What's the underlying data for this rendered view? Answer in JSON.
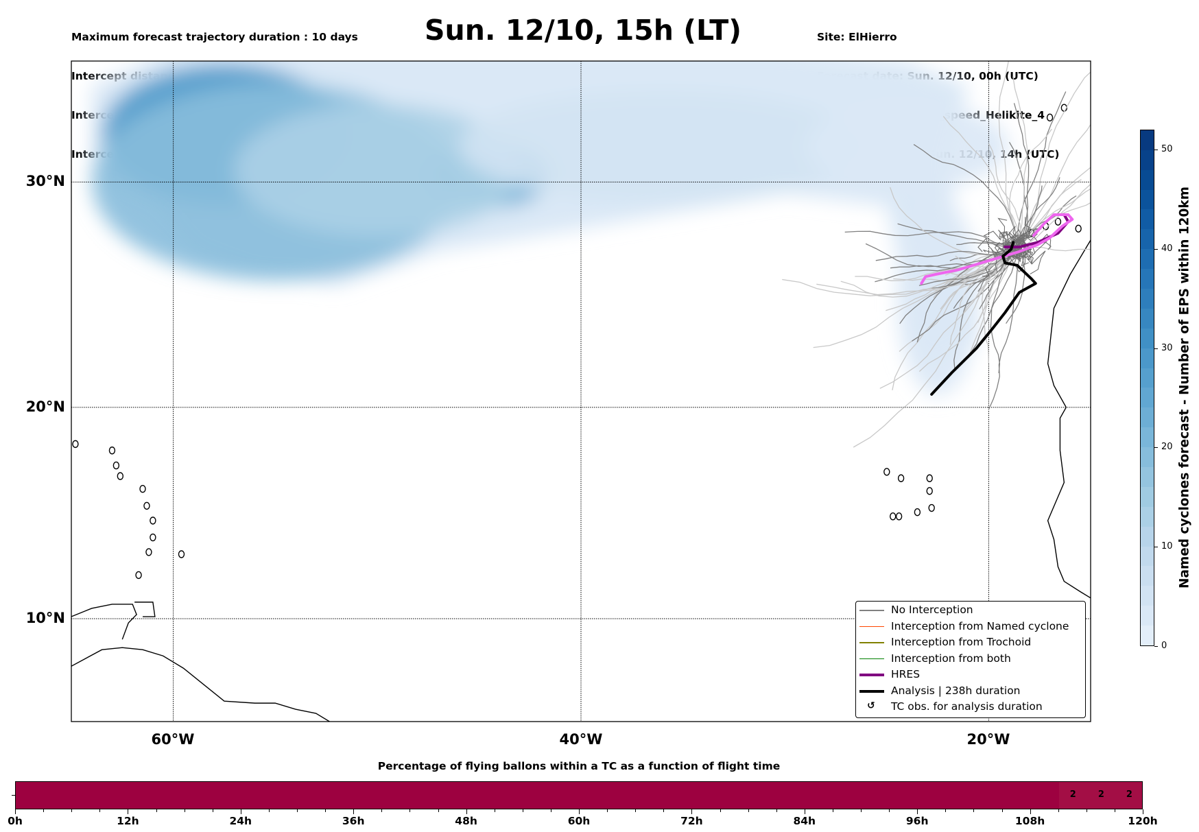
{
  "header": {
    "title": "Sun. 12/10, 15h (LT)",
    "info_left": [
      "Maximum forecast trajectory duration : 10 days",
      "Intercept distance: 300km",
      "Intercept RW2 (EPS):  30km/h2",
      "Intercept RW2 (HRES): 30km/h2"
    ],
    "info_right": [
      "Site: ElHierro",
      "Forecast date: Sun. 12/10, 00h (UTC)",
      "Speed function: U10_speed_Helikite_4",
      "Deployment date: Sun. 12/10, 14h (UTC)"
    ]
  },
  "map": {
    "extent": {
      "lon": [
        -65,
        -15
      ],
      "lat": [
        5,
        35
      ]
    },
    "lat_ticks": [
      {
        "value": 30,
        "label": "30°N"
      },
      {
        "value": 20,
        "label": "20°N"
      },
      {
        "value": 10,
        "label": "10°N"
      }
    ],
    "lon_ticks": [
      {
        "value": -60,
        "label": "60°W"
      },
      {
        "value": -40,
        "label": "40°W"
      },
      {
        "value": -20,
        "label": "20°W"
      }
    ],
    "colors": {
      "no_interception": "#808080",
      "no_interception_light": "#c8c8c8",
      "named_cyclone": "#ff4500",
      "trochoid": "#808000",
      "both": "#008000",
      "hres": "#800080",
      "hres_light": "#ee66ee",
      "analysis": "#000000"
    },
    "density_blobs": [
      {
        "lon": -57.5,
        "lat": 32.0,
        "rlon": 6,
        "rlat": 3.2,
        "value": 30
      },
      {
        "lon": -55.0,
        "lat": 30.0,
        "rlon": 9,
        "rlat": 4.5,
        "value": 18
      },
      {
        "lon": -44.5,
        "lat": 30.3,
        "rlon": 3,
        "rlat": 1.5,
        "value": 22
      },
      {
        "lon": -50.0,
        "lat": 30.5,
        "rlon": 7,
        "rlat": 3.0,
        "value": 12
      },
      {
        "lon": -36.0,
        "lat": 31.5,
        "rlon": 10,
        "rlat": 2.5,
        "value": 5
      },
      {
        "lon": -24.0,
        "lat": 31.5,
        "rlon": 5,
        "rlat": 2.0,
        "value": 3
      },
      {
        "lon": -22.5,
        "lat": 25.0,
        "rlon": 2,
        "rlat": 4.5,
        "value": 3
      }
    ],
    "hres_track": [
      [
        -23.3,
        25.6
      ],
      [
        -23.1,
        25.9
      ],
      [
        -22.6,
        26.0
      ],
      [
        -21.5,
        26.2
      ],
      [
        -20.0,
        26.6
      ],
      [
        -18.5,
        27.0
      ],
      [
        -17.6,
        27.3
      ],
      [
        -17.0,
        27.6
      ],
      [
        -16.4,
        28.1
      ],
      [
        -15.9,
        28.4
      ],
      [
        -16.1,
        28.6
      ],
      [
        -16.8,
        28.6
      ],
      [
        -17.3,
        28.2
      ],
      [
        -17.8,
        27.7
      ]
    ],
    "hres_dark_track": [
      [
        -19.2,
        27.2
      ],
      [
        -18.5,
        27.2
      ],
      [
        -17.6,
        27.4
      ],
      [
        -16.6,
        27.8
      ],
      [
        -16.1,
        28.3
      ],
      [
        -16.3,
        28.6
      ]
    ],
    "analysis_track": [
      [
        -22.8,
        20.6
      ],
      [
        -21.8,
        21.6
      ],
      [
        -20.6,
        22.7
      ],
      [
        -19.8,
        23.6
      ],
      [
        -19.2,
        24.3
      ],
      [
        -18.5,
        25.2
      ],
      [
        -17.7,
        25.6
      ],
      [
        -17.9,
        25.8
      ],
      [
        -18.6,
        26.4
      ],
      [
        -19.2,
        26.5
      ],
      [
        -19.3,
        26.8
      ],
      [
        -18.9,
        27.1
      ],
      [
        -18.8,
        27.4
      ]
    ],
    "legend": [
      {
        "label": "No Interception",
        "style": "thin",
        "color": "#808080"
      },
      {
        "label": "Interception from Named cyclone",
        "style": "thin",
        "color": "#ff4500"
      },
      {
        "label": "Interception from Trochoid",
        "style": "thin",
        "color": "#808000"
      },
      {
        "label": "Interception from both",
        "style": "thin",
        "color": "#008000"
      },
      {
        "label": "HRES",
        "style": "thick",
        "color": "#800080"
      },
      {
        "label": "Analysis | 238h duration",
        "style": "thick",
        "color": "#000000"
      },
      {
        "label": "TC obs. for analysis duration",
        "style": "glyph",
        "glyph": "↺",
        "icon": "tc-observation-icon"
      }
    ]
  },
  "colorbar": {
    "title": "Named cyclones forecast - Number of EPS within 120km",
    "range": [
      0,
      52
    ],
    "ticks": [
      0,
      10,
      20,
      30,
      40,
      50
    ],
    "tick_labels": [
      "0",
      "10",
      "20",
      "30",
      "40",
      "50"
    ],
    "colors": [
      "#e3eef9",
      "#dae8f6",
      "#d2e3f3",
      "#cadef0",
      "#c1d9ed",
      "#b7d4ea",
      "#abd0e6",
      "#a0cbe2",
      "#94c4df",
      "#87bddc",
      "#7ab6d9",
      "#6daed5",
      "#61a7d2",
      "#56a0ce",
      "#4b98ca",
      "#4090c5",
      "#3787c0",
      "#2e7ebc",
      "#2676b8",
      "#1e6db2",
      "#1764ab",
      "#115ca5",
      "#0b539c",
      "#084b93",
      "#08428a",
      "#083a80"
    ]
  },
  "chart_data": {
    "type": "heatmap",
    "title": "Percentage of flying ballons within a TC as a function of flight time",
    "xlabel": "",
    "ylabel": "",
    "x_range_hours": [
      0,
      120
    ],
    "x_ticks": [
      "0h",
      "12h",
      "24h",
      "36h",
      "48h",
      "60h",
      "72h",
      "84h",
      "96h",
      "108h",
      "120h"
    ],
    "minor_tick_step_hours": 3,
    "bins_hours": 3,
    "cells": [
      {
        "start": 0,
        "end": 111,
        "value": 0,
        "color": "#9d0140"
      },
      {
        "start": 111,
        "end": 114,
        "value": 2,
        "color": "#a30e45"
      },
      {
        "start": 114,
        "end": 117,
        "value": 2,
        "color": "#a30e45"
      },
      {
        "start": 117,
        "end": 120,
        "value": 2,
        "color": "#a30e45"
      }
    ],
    "value_labels": [
      {
        "hour": 112.5,
        "label": "2"
      },
      {
        "hour": 115.5,
        "label": "2"
      },
      {
        "hour": 118.5,
        "label": "2"
      }
    ]
  }
}
